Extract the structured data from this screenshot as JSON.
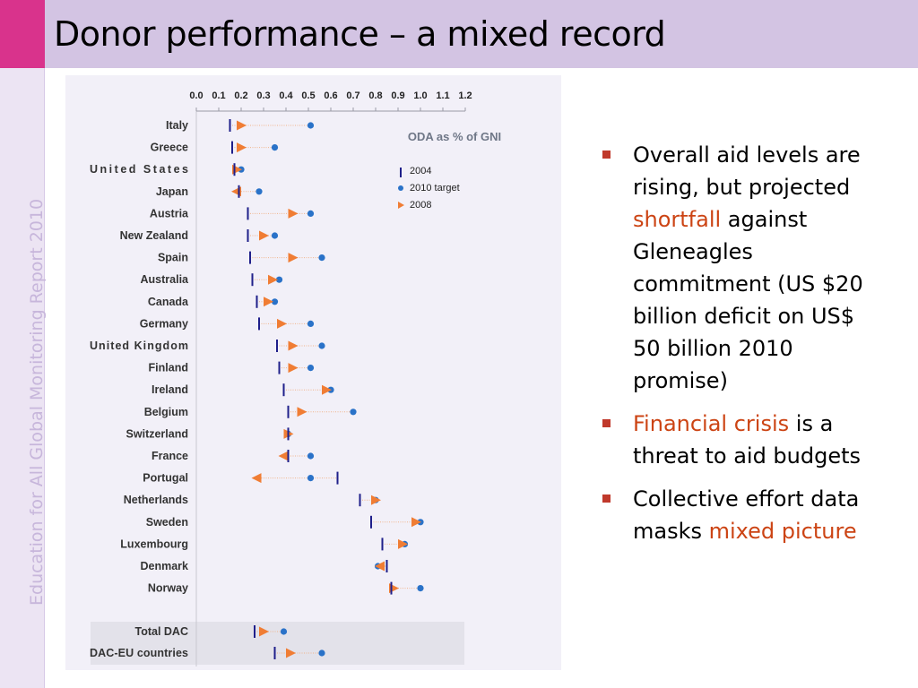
{
  "slide": {
    "title": "Donor performance – a mixed record",
    "side_text": "Education for All Global Monitoring Report 2010"
  },
  "bullets": [
    {
      "pre": "Overall aid levels are rising, but projected ",
      "highlight": "shortfall",
      "post": " against Gleneagles commitment (US $20 billion deficit on US$ 50 billion 2010 promise)"
    },
    {
      "pre": "",
      "highlight": "Financial crisis",
      "post": " is a threat to aid budgets"
    },
    {
      "pre": "Collective effort data masks ",
      "highlight": "mixed picture",
      "post": ""
    }
  ],
  "colors": {
    "title_bar": "#d3c4e3",
    "title_accent": "#d9338c",
    "marker_2004": "#1f1f8a",
    "marker_target": "#2a72c8",
    "marker_2008": "#f07d34",
    "bullet_highlight": "#cc4414"
  },
  "chart_data": {
    "type": "scatter",
    "title": "ODA as % of GNI",
    "x_ticks": [
      "0.0",
      "0.1",
      "0.2",
      "0.3",
      "0.4",
      "0.5",
      "0.6",
      "0.7",
      "0.8",
      "0.9",
      "1.0",
      "1.1",
      "1.2"
    ],
    "xlim": [
      0,
      1.2
    ],
    "legend": [
      "2004",
      "2010 target",
      "2008"
    ],
    "legend_position": "top-right",
    "countries": [
      {
        "name": "Italy",
        "v2004": 0.15,
        "target": 0.51,
        "v2008": 0.2
      },
      {
        "name": "Greece",
        "v2004": 0.16,
        "target": 0.35,
        "v2008": 0.2
      },
      {
        "name": "United States",
        "v2004": 0.17,
        "target": 0.2,
        "v2008": 0.18
      },
      {
        "name": "Japan",
        "v2004": 0.19,
        "target": 0.28,
        "v2008": 0.18
      },
      {
        "name": "Austria",
        "v2004": 0.23,
        "target": 0.51,
        "v2008": 0.43
      },
      {
        "name": "New Zealand",
        "v2004": 0.23,
        "target": 0.35,
        "v2008": 0.3
      },
      {
        "name": "Spain",
        "v2004": 0.24,
        "target": 0.56,
        "v2008": 0.43
      },
      {
        "name": "Australia",
        "v2004": 0.25,
        "target": 0.37,
        "v2008": 0.34
      },
      {
        "name": "Canada",
        "v2004": 0.27,
        "target": 0.35,
        "v2008": 0.32
      },
      {
        "name": "Germany",
        "v2004": 0.28,
        "target": 0.51,
        "v2008": 0.38
      },
      {
        "name": "United Kingdom",
        "v2004": 0.36,
        "target": 0.56,
        "v2008": 0.43
      },
      {
        "name": "Finland",
        "v2004": 0.37,
        "target": 0.51,
        "v2008": 0.43
      },
      {
        "name": "Ireland",
        "v2004": 0.39,
        "target": 0.6,
        "v2008": 0.58
      },
      {
        "name": "Belgium",
        "v2004": 0.41,
        "target": 0.7,
        "v2008": 0.47
      },
      {
        "name": "Switzerland",
        "v2004": 0.41,
        "target": 0.41,
        "v2008": 0.41
      },
      {
        "name": "France",
        "v2004": 0.41,
        "target": 0.51,
        "v2008": 0.39
      },
      {
        "name": "Portugal",
        "v2004": 0.63,
        "target": 0.51,
        "v2008": 0.27
      },
      {
        "name": "Netherlands",
        "v2004": 0.73,
        "target": 0.8,
        "v2008": 0.8
      },
      {
        "name": "Sweden",
        "v2004": 0.78,
        "target": 1.0,
        "v2008": 0.98
      },
      {
        "name": "Luxembourg",
        "v2004": 0.83,
        "target": 0.93,
        "v2008": 0.92
      },
      {
        "name": "Denmark",
        "v2004": 0.85,
        "target": 0.81,
        "v2008": 0.82
      },
      {
        "name": "Norway",
        "v2004": 0.87,
        "target": 1.0,
        "v2008": 0.88
      }
    ],
    "groups": [
      {
        "name": "Total DAC",
        "v2004": 0.26,
        "target": 0.39,
        "v2008": 0.3
      },
      {
        "name": "DAC-EU countries",
        "v2004": 0.35,
        "target": 0.56,
        "v2008": 0.42
      }
    ]
  }
}
